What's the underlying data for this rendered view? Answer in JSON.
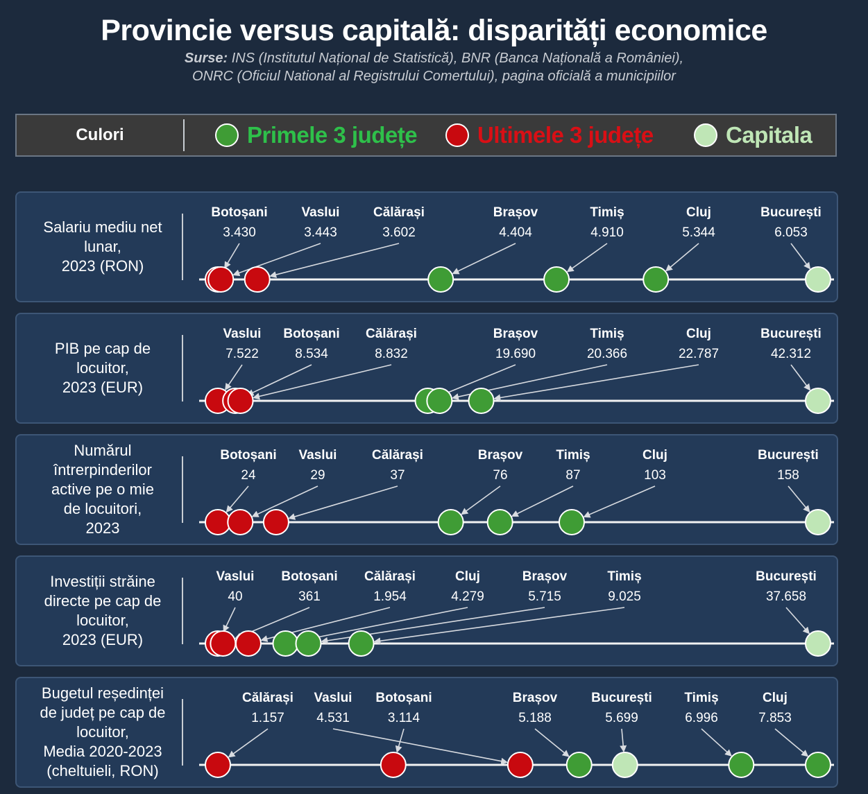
{
  "title": "Provincie versus capitală: disparități economice",
  "subtitle_bold": "Surse:",
  "subtitle_line1": " INS (Institutul Național de Statistică), BNR (Banca Națională a României),",
  "subtitle_line2": "ONRC (Oficiul National al Registrului Comertului), pagina oficială a municipiilor",
  "legend": {
    "label": "Culori",
    "items": [
      {
        "label": "Primele 3 județe",
        "color": "#3f9c35",
        "text_color": "#2ec04a"
      },
      {
        "label": "Ultimele 3 județe",
        "color": "#c8090f",
        "text_color": "#d90f15"
      },
      {
        "label": "Capitala",
        "color": "#bfe6b6",
        "text_color": "#bfe6b6"
      }
    ]
  },
  "colors": {
    "top": "#3f9c35",
    "bottom": "#c8090f",
    "capital": "#bfe6b6"
  },
  "chart_data": [
    {
      "type": "scatter",
      "label_lines": [
        "Salariu mediu net",
        "lunar,",
        "2023 (RON)"
      ],
      "points": [
        {
          "name": "Botoșani",
          "value_label": "3.430",
          "value": 3430,
          "group": "bottom"
        },
        {
          "name": "Vaslui",
          "value_label": "3.443",
          "value": 3443,
          "group": "bottom"
        },
        {
          "name": "Călărași",
          "value_label": "3.602",
          "value": 3602,
          "group": "bottom"
        },
        {
          "name": "Brașov",
          "value_label": "4.404",
          "value": 4404,
          "group": "top"
        },
        {
          "name": "Timiș",
          "value_label": "4.910",
          "value": 4910,
          "group": "top"
        },
        {
          "name": "Cluj",
          "value_label": "5.344",
          "value": 5344,
          "group": "top"
        },
        {
          "name": "București",
          "value_label": "6.053",
          "value": 6053,
          "group": "capital"
        }
      ]
    },
    {
      "type": "scatter",
      "label_lines": [
        "PIB pe cap de",
        "locuitor,",
        "2023 (EUR)"
      ],
      "points": [
        {
          "name": "Vaslui",
          "value_label": "7.522",
          "value": 7522,
          "group": "bottom"
        },
        {
          "name": "Botoșani",
          "value_label": "8.534",
          "value": 8534,
          "group": "bottom"
        },
        {
          "name": "Călărași",
          "value_label": "8.832",
          "value": 8832,
          "group": "bottom"
        },
        {
          "name": "Brașov",
          "value_label": "19.690",
          "value": 19690,
          "group": "top"
        },
        {
          "name": "Timiș",
          "value_label": "20.366",
          "value": 20366,
          "group": "top"
        },
        {
          "name": "Cluj",
          "value_label": "22.787",
          "value": 22787,
          "group": "top"
        },
        {
          "name": "București",
          "value_label": "42.312",
          "value": 42312,
          "group": "capital"
        }
      ]
    },
    {
      "type": "scatter",
      "label_lines": [
        "Numărul",
        "întrerpinderilor",
        "active pe o mie",
        "de locuitori,",
        "2023"
      ],
      "points": [
        {
          "name": "Botoșani",
          "value_label": "24",
          "value": 24,
          "group": "bottom"
        },
        {
          "name": "Vaslui",
          "value_label": "29",
          "value": 29,
          "group": "bottom"
        },
        {
          "name": "Călărași",
          "value_label": "37",
          "value": 37,
          "group": "bottom"
        },
        {
          "name": "Brașov",
          "value_label": "76",
          "value": 76,
          "group": "top"
        },
        {
          "name": "Timiș",
          "value_label": "87",
          "value": 87,
          "group": "top"
        },
        {
          "name": "Cluj",
          "value_label": "103",
          "value": 103,
          "group": "top"
        },
        {
          "name": "București",
          "value_label": "158",
          "value": 158,
          "group": "capital"
        }
      ]
    },
    {
      "type": "scatter",
      "label_lines": [
        "Investiții străine",
        "directe pe cap de",
        "locuitor,",
        "2023 (EUR)"
      ],
      "points": [
        {
          "name": "Vaslui",
          "value_label": "40",
          "value": 40,
          "group": "bottom"
        },
        {
          "name": "Botoșani",
          "value_label": "361",
          "value": 361,
          "group": "bottom"
        },
        {
          "name": "Călărași",
          "value_label": "1.954",
          "value": 1954,
          "group": "bottom"
        },
        {
          "name": "Cluj",
          "value_label": "4.279",
          "value": 4279,
          "group": "top"
        },
        {
          "name": "Brașov",
          "value_label": "5.715",
          "value": 5715,
          "group": "top"
        },
        {
          "name": "Timiș",
          "value_label": "9.025",
          "value": 9025,
          "group": "top"
        },
        {
          "name": "București",
          "value_label": "37.658",
          "value": 37658,
          "group": "capital"
        }
      ]
    },
    {
      "type": "scatter",
      "label_lines": [
        "Bugetul reședinței",
        "de județ pe cap de",
        "locuitor,",
        "Media 2020-2023",
        "(cheltuieli, RON)"
      ],
      "points": [
        {
          "name": "Călărași",
          "value_label": "1.157",
          "value": 1157,
          "group": "bottom"
        },
        {
          "name": "Vaslui",
          "value_label": "4.531",
          "value": 4531,
          "group": "bottom"
        },
        {
          "name": "Botoșani",
          "value_label": "3.114",
          "value": 3114,
          "group": "bottom"
        },
        {
          "name": "Brașov",
          "value_label": "5.188",
          "value": 5188,
          "group": "top"
        },
        {
          "name": "București",
          "value_label": "5.699",
          "value": 5699,
          "group": "capital"
        },
        {
          "name": "Timiș",
          "value_label": "6.996",
          "value": 6996,
          "group": "top"
        },
        {
          "name": "Cluj",
          "value_label": "7.853",
          "value": 7853,
          "group": "top"
        }
      ]
    }
  ]
}
